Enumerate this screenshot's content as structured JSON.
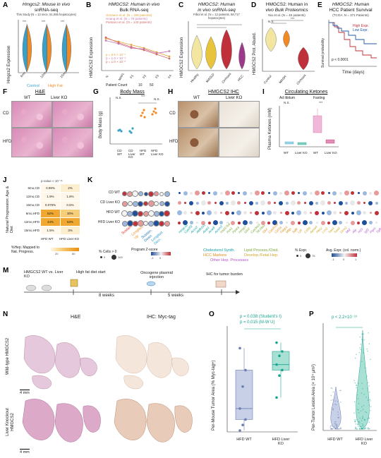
{
  "panels": {
    "A": {
      "label": "A",
      "title": "Hmgcs2: Mouse in vivo",
      "subtitle": "snRNA-seq",
      "note": "This Study (N = 13 mice, 51,065 hepatocytes)",
      "ylabel": "Hmgcs2 Expression",
      "groups": [
        "6mo",
        "12mo",
        "15mo"
      ],
      "legend": [
        "Control",
        "High Fat"
      ],
      "stars": [
        "***",
        "***",
        "***"
      ]
    },
    "B": {
      "label": "B",
      "title": "HMGCS2: Human in vivo",
      "subtitle": "Bulk RNA-seq",
      "ylabel": "HMGCS2 Expression",
      "xticks": [
        "N",
        "MAFL",
        "F1",
        "F2",
        "F3",
        "F4"
      ],
      "legend": [
        "Govaere et al. (N = 206 patients)",
        "Hoang et al. (N = 78 patients)",
        "Pantano et al. (N = 143 patients)"
      ],
      "pvals": [
        "p = 5.6 × 10⁻⁴",
        "p = 1.6 × 10⁻⁴",
        "p = 1.0 × 10⁻⁶"
      ],
      "size_legend": "Patient Count",
      "sizes": [
        "10",
        "50"
      ]
    },
    "C": {
      "label": "C",
      "title": "HMGCS2: Human",
      "subtitle": "in vivo snRNA-seq",
      "note": "Filliol et al. (N = 12 patients, 58,717 hepatocytes)",
      "ylabel": "HMGCS2 Expression",
      "xticks": [
        "Healthy",
        "MASLD",
        "Cirrhosis",
        "HCC"
      ]
    },
    "D": {
      "label": "D",
      "title": "HMGCS2: Human in",
      "subtitle": "vivo Bulk Proteomics",
      "note": "Niu et al. (N = 45 patients)",
      "ylabel": "HMGCS2 Prot. Abund.",
      "xticks": [
        "Control",
        "MASH",
        "Cirrhosis"
      ],
      "sig": [
        "N.S.",
        "***",
        "***"
      ]
    },
    "E": {
      "label": "E",
      "title": "HMGCS2: Human",
      "subtitle": "HCC Patient Survival",
      "note": "(TCGA: N = 371 Patients)",
      "ylabel": "Survival probability",
      "xlabel": "Time (days)",
      "legend": [
        "High Expr.",
        "Low Expr."
      ],
      "pval": "p < 0.0001"
    },
    "F": {
      "label": "F",
      "title": "H&E",
      "cols": [
        "WT",
        "Liver KO"
      ],
      "rows": [
        "CD",
        "HFD"
      ]
    },
    "G": {
      "label": "G",
      "title": "Body Mass",
      "ylabel": "Body Mass (g)",
      "xticks": [
        "CD WT",
        "CD Liver KO",
        "HFD WT",
        "HFD Liver KO"
      ],
      "sig": [
        "N.S.",
        "***",
        "N.S."
      ]
    },
    "H": {
      "label": "H",
      "title": "HMGCS2 IHC",
      "cols": [
        "WT",
        "Liver KO"
      ],
      "rows": [
        "CD",
        "HFD"
      ]
    },
    "I": {
      "label": "I",
      "title": "Circulating Ketones",
      "conditions": [
        "Ad libitum",
        "Fasting"
      ],
      "ylabel": "Plasma Ketones (mM)",
      "xticks": [
        "WT",
        "Liver KO",
        "WT",
        "Liver KO"
      ],
      "sig": [
        "N.S.",
        "***"
      ]
    },
    "J": {
      "label": "J",
      "ylabel": "Natural Progression: Age & Diet",
      "pval_header": "p-value < 10⁻¹⁶",
      "rows": [
        "6mo,CD",
        "12mo,CD",
        "15mo,CD",
        "6mo,HFD",
        "12mo,HFD",
        "15mo,HFD"
      ],
      "wt": [
        "0.99%",
        "1.9%",
        "0.076%",
        "52%",
        "44%",
        "1.5%"
      ],
      "ko": [
        "2%",
        "1.8%",
        "0.5%",
        "30%",
        "63%",
        "3%"
      ],
      "xticks": [
        "HFD WT",
        "HFD Liver KO"
      ],
      "legend_title": "%Hep. Mapped to Nat. Progress.",
      "legend_ticks": [
        "20",
        "60"
      ]
    },
    "K": {
      "label": "K",
      "rows": [
        "CD WT",
        "CD Liver KO",
        "HFD WT",
        "HFD Liver KO"
      ],
      "programs": [
        "Sustain. Up",
        "Longitud. Up",
        "Sustain. Down",
        "Longitud. Decr."
      ],
      "program_colors": [
        "#e0301e",
        "#f08a24",
        "#1f77b4",
        "#2ca0c8"
      ],
      "legend_title": "% Cells > 0",
      "legend_sizes": [
        "0",
        "100"
      ],
      "colorbar_title": "Program Z-score",
      "colorbar_ticks": [
        "-1",
        "0"
      ]
    },
    "L": {
      "label": "L",
      "genes": [
        "Hmgcs2",
        "Cyp2f2",
        "Acss2",
        "Aldh1b1",
        "Acat1",
        "Acadl",
        "Acsm3",
        "Hsd17b4",
        "Pck1",
        "Ppara",
        "Hmgcl",
        "Gls2",
        "Cyp3a11",
        "Slc16a1",
        "Glul",
        "Cyp2c29",
        "Cpt1a",
        "Fabp1",
        "Mttp",
        "Sqle",
        "Lpl",
        "Cd36",
        "Apoa4",
        "Plin2",
        "Lcn2",
        "Saa1",
        "Saa2",
        "Orm2",
        "Mt2",
        "Afp",
        "H19",
        "Igf2",
        "Ptprc",
        "Tgfb1"
      ],
      "categories": [
        "Cholesterol Synth.",
        "Lipid Process./Oxid.",
        "HCC Markers",
        "Develop./Fetal Hep.",
        "Other Hep. Processes"
      ],
      "category_colors": [
        "#0fa0a0",
        "#7aa637",
        "#e08d1a",
        "#cfa52b",
        "#b455c8"
      ],
      "legend_title": "% Expr.",
      "legend_sizes": [
        "0",
        "75"
      ],
      "colorbar_title": "Avg. Expr. (col. norm.)",
      "colorbar_ticks": [
        "-1",
        "0",
        "1"
      ]
    },
    "M": {
      "label": "M",
      "steps": [
        "HMGCS2 WT vs. Liver KO",
        "High fat diet start",
        "Oncogene plasmid injection",
        "IHC for tumor burden"
      ],
      "durations": [
        "8 weeks",
        "5 weeks"
      ]
    },
    "N": {
      "label": "N",
      "cols": [
        "H&E",
        "IHC: Myc-tag"
      ],
      "rows": [
        "Wild-type HMGCS2",
        "Liver Knockout HMGCS2"
      ],
      "scale": "4 mm"
    },
    "O": {
      "label": "O",
      "ylabel": "Per-Mouse Tumor Area (% Myc-tag+)",
      "xticks": [
        "HFD WT",
        "HFD Liver KO"
      ],
      "pvals": [
        "p = 0.038 (Student's t)",
        "p = 0.015 (M-W U)"
      ]
    },
    "P": {
      "label": "P",
      "ylabel": "Per-Tumor Lesion Area (× 10⁴ μm²)",
      "xticks": [
        "HFD WT",
        "HFD Liver KO"
      ],
      "pval": "p < 2.2×10⁻¹⁶"
    }
  },
  "colors": {
    "control": "#3aa0c8",
    "highfat": "#f08a24",
    "gov": "#e2a437",
    "hoang": "#c77bb5",
    "pantano": "#d36a6a",
    "healthy": "#f2e6a0",
    "masld": "#e8c43c",
    "cirrhosis": "#c0303a",
    "hcc": "#9b3a8a",
    "wt": "#6b7fb0",
    "ko": "#1aa58f",
    "survHigh": "#c0303a",
    "survLow": "#1f5aa6"
  },
  "chart_data": [
    {
      "type": "box",
      "panel": "O",
      "categories": [
        "HFD WT",
        "HFD Liver KO"
      ],
      "series": [
        {
          "name": "HFD WT",
          "values": [
            0,
            5,
            10,
            20,
            40,
            55,
            75
          ]
        },
        {
          "name": "HFD Liver KO",
          "values": [
            30,
            50,
            55,
            60,
            68,
            72,
            80
          ]
        }
      ],
      "ylim": [
        0,
        90
      ],
      "ylabel": "Per-Mouse Tumor Area (% Myc-tag+)"
    },
    {
      "type": "line",
      "panel": "B",
      "x": [
        "N",
        "MAFL",
        "F1",
        "F2",
        "F3",
        "F4"
      ],
      "series": [
        {
          "name": "Govaere et al. (N = 206 patients)",
          "values": [
            11.9,
            11.6,
            11.3,
            11.0,
            10.6,
            10.2
          ]
        },
        {
          "name": "Hoang et al. (N = 78 patients)",
          "values": [
            11.7,
            11.4,
            11.0,
            10.9,
            10.5,
            10.7
          ]
        },
        {
          "name": "Pantano et al. (N = 143 patients)",
          "values": [
            12.0,
            11.5,
            11.1,
            10.8,
            10.4,
            10.0
          ]
        }
      ],
      "ylim": [
        9,
        13
      ]
    }
  ]
}
